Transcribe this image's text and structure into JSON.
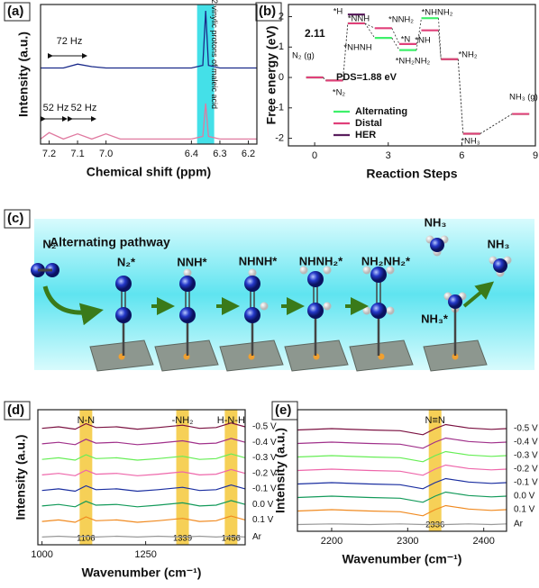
{
  "chart_data": [
    {
      "type": "line",
      "panel_label": "(a)",
      "xlabel": "Chemical shift (ppm)",
      "ylabel": "Intensity (a.u.)",
      "x": [
        7.23,
        7.2,
        7.15,
        7.1,
        7.05,
        7.0,
        6.95,
        6.65,
        6.4,
        6.36,
        6.35,
        6.34,
        6.3,
        6.17
      ],
      "series": [
        {
          "color": "#1a2a8a",
          "values": [
            6,
            6,
            6,
            6.3,
            6.1,
            6,
            6,
            6,
            6,
            6.2,
            10.5,
            6.2,
            6,
            6
          ]
        },
        {
          "color": "#e07aa0",
          "values": [
            0.4,
            0.9,
            0.4,
            0.8,
            0.4,
            0.8,
            0.4,
            0.4,
            0.4,
            0.6,
            3.2,
            0.6,
            0.4,
            0.4
          ]
        }
      ],
      "xlim": [
        7.23,
        6.17
      ],
      "xbreak": [
        6.95,
        6.65
      ],
      "xticks": [
        7.2,
        7.1,
        {
          "value": 7,
          "label": "7.0"
        },
        6.4,
        6.3,
        6.2
      ],
      "ylim": [
        0,
        11
      ],
      "highlight": {
        "range": [
          6.38,
          6.32
        ],
        "color": "#44e0e8",
        "label": "2 vinylic protons of maleic acid"
      },
      "annotations": [
        "72 Hz",
        "52 Hz",
        "52 Hz"
      ]
    },
    {
      "type": "level",
      "panel_label": "(b)",
      "xlabel": "Reaction Steps",
      "ylabel": "Free energy (eV)",
      "x": [
        0,
        0.8,
        1.7,
        2.8,
        3.8,
        4.7,
        5.5,
        6.4,
        8.4
      ],
      "series": [
        {
          "name": "Alternating",
          "color": "#3ef06a",
          "values": [
            0,
            -0.1,
            1.78,
            1.3,
            0.9,
            1.95,
            0.6,
            -1.85,
            -1.2
          ]
        },
        {
          "name": "Distal",
          "color": "#e0407a",
          "values": [
            0,
            -0.1,
            1.78,
            1.62,
            1.1,
            1.55,
            0.6,
            -1.85,
            -1.2
          ]
        },
        {
          "name": "HER",
          "color": "#5a1f5e",
          "values": [
            null,
            null,
            2.07,
            null,
            null,
            null,
            null,
            null,
            null
          ]
        }
      ],
      "xlim": [
        -1.07,
        9
      ],
      "xticks": [
        0,
        3,
        6,
        9
      ],
      "ylim": [
        -2.25,
        2.4
      ],
      "yticks": [
        -2,
        -1,
        0,
        1,
        2
      ],
      "level_labels": [
        "N₂ (g)",
        "*N₂",
        "*H",
        "*NNH",
        "*NNH₂",
        "*NHNH",
        "*N",
        "*NH₂NH₂",
        "*NHNH₂",
        "*NH",
        "*NH₂",
        "*NH₃",
        "NH₃ (g)",
        "2.11"
      ],
      "annotation": "PDS=1.88 eV"
    },
    {
      "type": "spectra",
      "panel_label": "(d)",
      "xlabel": "Wavenumber (cm⁻¹)",
      "ylabel": "Intensity (a.u.)",
      "x": [
        1000,
        1040,
        1080,
        1106,
        1130,
        1180,
        1230,
        1280,
        1339,
        1380,
        1420,
        1456,
        1490
      ],
      "series": [
        {
          "name": "-0.5 V",
          "color": "#7a1040",
          "values": [
            7,
            7.1,
            6.95,
            7.3,
            7.05,
            7.1,
            6.95,
            7.05,
            7.2,
            7,
            7.05,
            7.35,
            7.1
          ]
        },
        {
          "name": "-0.4 V",
          "color": "#a0308a",
          "values": [
            6,
            6.1,
            5.95,
            6.3,
            6.05,
            6.1,
            5.95,
            6.05,
            6.2,
            6,
            6.05,
            6.35,
            6.1
          ]
        },
        {
          "name": "-0.3 V",
          "color": "#66ee55",
          "values": [
            5,
            5.1,
            4.95,
            5.3,
            5.05,
            5.1,
            4.95,
            5.05,
            5.2,
            5,
            5.05,
            5.35,
            5.1
          ]
        },
        {
          "name": "-0.2 V",
          "color": "#ee66aa",
          "values": [
            4,
            4.1,
            3.95,
            4.3,
            4.05,
            4.1,
            3.95,
            4.05,
            4.2,
            4,
            4.05,
            4.35,
            4.1
          ]
        },
        {
          "name": "-0.1 V",
          "color": "#1a2ea0",
          "values": [
            3,
            3.1,
            2.95,
            3.3,
            3.05,
            3.1,
            2.95,
            3.05,
            3.2,
            3,
            3.05,
            3.35,
            3.1
          ]
        },
        {
          "name": "0.0 V",
          "color": "#139a5a",
          "values": [
            2,
            2.1,
            1.95,
            2.3,
            2.05,
            2.1,
            1.95,
            2.05,
            2.2,
            2,
            2.05,
            2.35,
            2.1
          ]
        },
        {
          "name": "0.1 V",
          "color": "#f08a20",
          "values": [
            1,
            1.1,
            0.95,
            1.3,
            1.05,
            1.1,
            0.95,
            1.05,
            1.2,
            1,
            1.05,
            1.35,
            1.1
          ]
        },
        {
          "name": "Ar",
          "color": "#999999",
          "values": [
            0,
            0.05,
            0,
            0.05,
            0,
            0.05,
            0,
            0.05,
            0,
            0.05,
            0,
            0.05,
            0
          ]
        }
      ],
      "xlim": [
        990,
        1490
      ],
      "xticks": [
        1000,
        1250
      ],
      "ylim": [
        -0.5,
        8.2
      ],
      "bands": [
        {
          "value": 1106,
          "label": "N-N"
        },
        {
          "value": 1339,
          "label": "-NH₂"
        },
        {
          "value": 1456,
          "label": "H-N-H"
        }
      ]
    },
    {
      "type": "spectra",
      "panel_label": "(e)",
      "xlabel": "Wavenumber (cm⁻¹)",
      "ylabel": "Intensity (a.u.)",
      "x": [
        2155,
        2200,
        2250,
        2290,
        2320,
        2336,
        2350,
        2380,
        2410,
        2430
      ],
      "series": [
        {
          "name": "-0.5 V",
          "color": "#7a1040",
          "values": [
            7,
            7.1,
            7,
            6.95,
            6.65,
            7.1,
            7.4,
            7.15,
            7.05,
            7.1
          ]
        },
        {
          "name": "-0.4 V",
          "color": "#a0308a",
          "values": [
            6,
            6.1,
            6,
            5.95,
            5.65,
            6.1,
            6.4,
            6.15,
            6.05,
            6.1
          ]
        },
        {
          "name": "-0.3 V",
          "color": "#66ee55",
          "values": [
            5,
            5.1,
            5,
            4.95,
            4.65,
            5.1,
            5.4,
            5.15,
            5.05,
            5.1
          ]
        },
        {
          "name": "-0.2 V",
          "color": "#ee66aa",
          "values": [
            4,
            4.1,
            4,
            3.95,
            3.65,
            4.1,
            4.4,
            4.15,
            4.05,
            4.1
          ]
        },
        {
          "name": "-0.1 V",
          "color": "#1a2ea0",
          "values": [
            3,
            3.1,
            3,
            2.95,
            2.65,
            3.1,
            3.4,
            3.15,
            3.05,
            3.1
          ]
        },
        {
          "name": "0.0 V",
          "color": "#139a5a",
          "values": [
            2,
            2.1,
            2,
            1.95,
            1.65,
            2.1,
            2.4,
            2.15,
            2.05,
            2.1
          ]
        },
        {
          "name": "0.1 V",
          "color": "#f08a20",
          "values": [
            1,
            1.1,
            1,
            0.95,
            0.65,
            1.1,
            1.4,
            1.15,
            1.05,
            1.1
          ]
        },
        {
          "name": "Ar",
          "color": "#999999",
          "values": [
            0,
            0.05,
            0,
            0.05,
            0,
            0.05,
            0,
            0.05,
            0,
            0.05
          ]
        }
      ],
      "xlim": [
        2155,
        2430
      ],
      "xticks": [
        2200,
        2300,
        2400
      ],
      "ylim": [
        -0.5,
        8.5
      ],
      "bands": [
        {
          "value": 2336,
          "label": "N≡N"
        }
      ]
    }
  ],
  "pathway": {
    "panel_label": "(c)",
    "title": "Alternating pathway",
    "species": [
      "N₂",
      "N₂*",
      "NNH*",
      "NHNH*",
      "NHNH₂*",
      "NH₂NH₂*",
      "NH₃",
      "NH₃",
      "NH₃*"
    ]
  }
}
